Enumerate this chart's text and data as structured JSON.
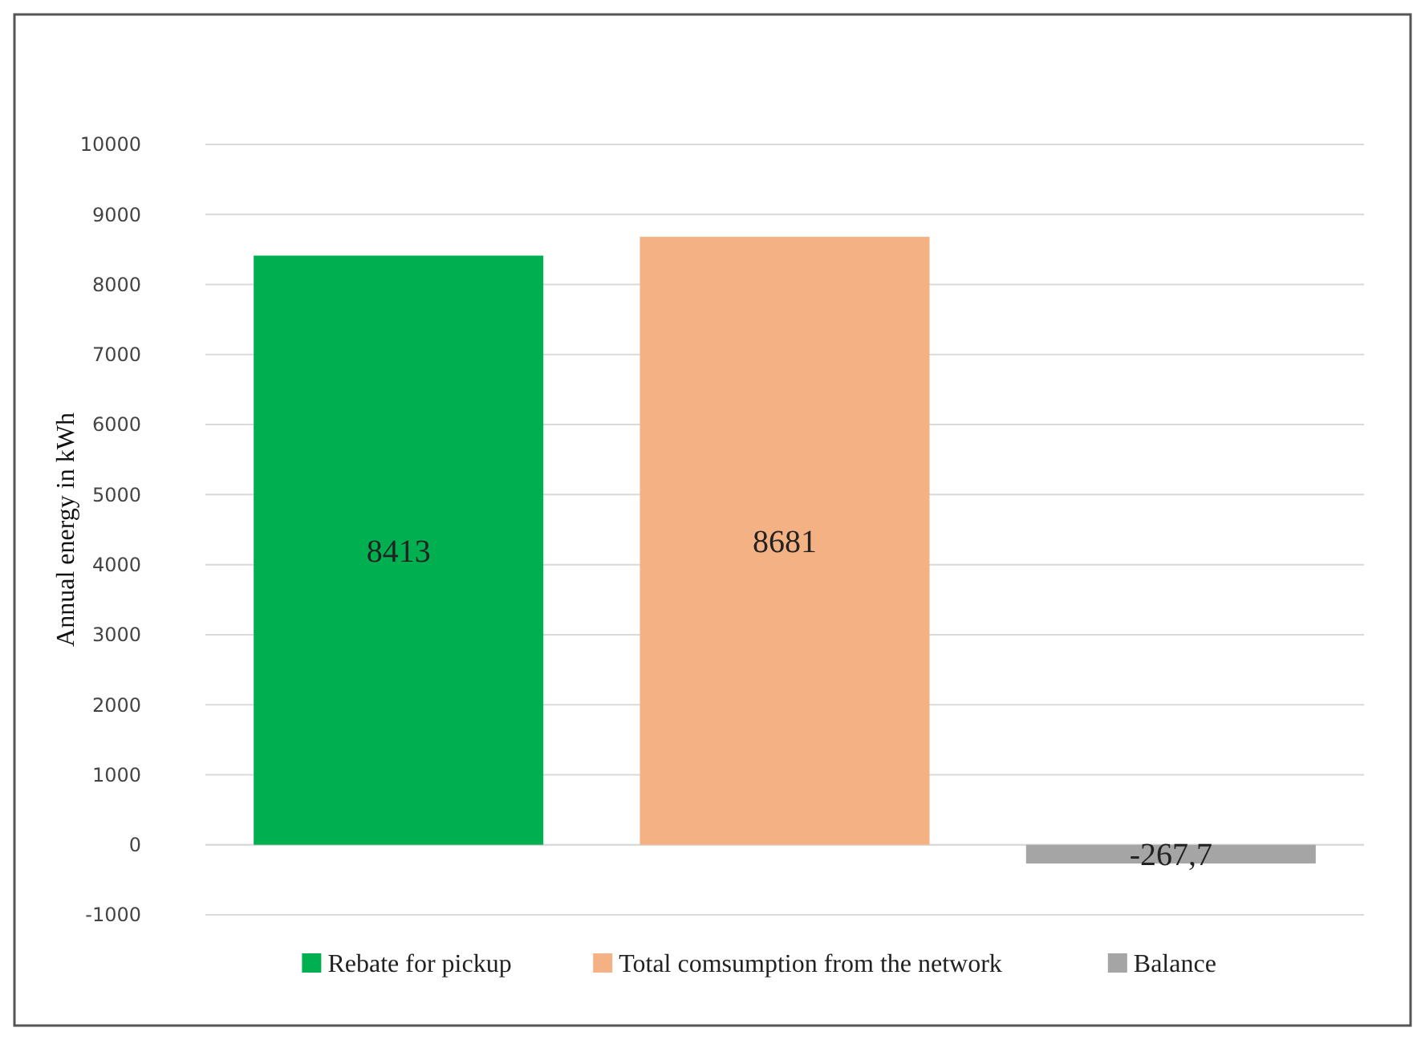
{
  "chart_data": {
    "type": "bar",
    "ylabel": "Annual energy in  kWh",
    "categories": [
      null,
      null,
      null
    ],
    "series": [
      {
        "name": "Rebate for pickup",
        "color": "#00b050",
        "values": [
          8413,
          null,
          null
        ],
        "value_labels": [
          "8413",
          null,
          null
        ]
      },
      {
        "name": "Total comsumption from the network",
        "color": "#f4b183",
        "values": [
          null,
          8681,
          null
        ],
        "value_labels": [
          null,
          "8681",
          null
        ]
      },
      {
        "name": "Balance",
        "color": "#a5a5a5",
        "values": [
          null,
          null,
          -267.7
        ],
        "value_labels": [
          null,
          null,
          "-267,7"
        ]
      }
    ],
    "ylim": [
      -1000,
      10000
    ],
    "yticks": [
      -1000,
      0,
      1000,
      2000,
      3000,
      4000,
      5000,
      6000,
      7000,
      8000,
      9000,
      10000
    ],
    "grid": "y",
    "legend": "bottom"
  }
}
